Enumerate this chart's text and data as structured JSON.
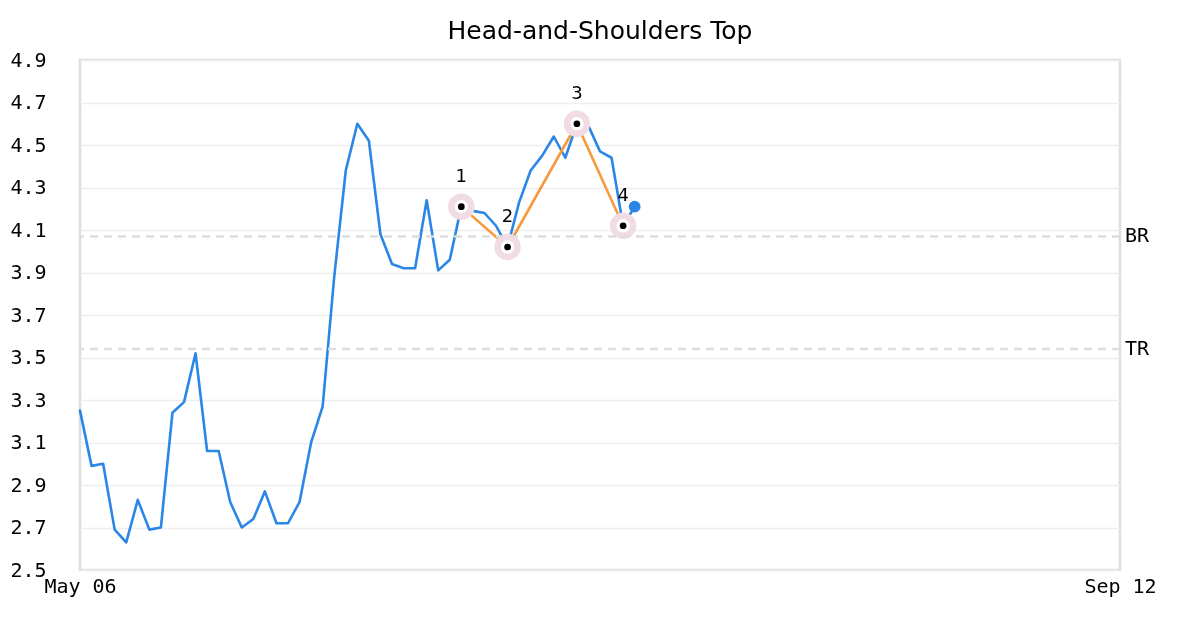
{
  "chart_data": {
    "type": "line",
    "title": "Head-and-Shoulders Top",
    "categories": [
      "May 06",
      null,
      null,
      null,
      null,
      null,
      null,
      null,
      null,
      null,
      null,
      null,
      null,
      null,
      null,
      null,
      null,
      null,
      null,
      null,
      null,
      null,
      null,
      null,
      null,
      null,
      null,
      null,
      null,
      null,
      null,
      null,
      null,
      null,
      null,
      null,
      null,
      null,
      null,
      null,
      null,
      null,
      null,
      null,
      null,
      null,
      null,
      null,
      null,
      null,
      null,
      null,
      null,
      null,
      null,
      null,
      null,
      null,
      null,
      null,
      null,
      null,
      null,
      null,
      null,
      null,
      null,
      null,
      null,
      null,
      null,
      null,
      null,
      null,
      null,
      null,
      null,
      null,
      null,
      null,
      null,
      null,
      null,
      null,
      null,
      null,
      null,
      null,
      null,
      null,
      "Sep 12"
    ],
    "series": [
      {
        "color": "#2b86e6",
        "values": [
          3.25,
          2.99,
          3.0,
          2.69,
          2.63,
          2.83,
          2.69,
          2.7,
          3.24,
          3.29,
          3.52,
          3.06,
          3.06,
          2.82,
          2.7,
          2.74,
          2.87,
          2.72,
          2.72,
          2.82,
          3.1,
          3.27,
          3.88,
          4.38,
          4.6,
          4.52,
          4.08,
          3.94,
          3.92,
          3.92,
          4.24,
          3.91,
          3.96,
          4.21,
          4.19,
          4.18,
          4.12,
          4.02,
          4.23,
          4.38,
          4.45,
          4.54,
          4.44,
          4.6,
          4.59,
          4.47,
          4.44,
          4.12,
          4.21,
          null,
          null,
          null,
          null,
          null,
          null,
          null,
          null,
          null,
          null,
          null,
          null,
          null,
          null,
          null,
          null,
          null,
          null,
          null,
          null,
          null,
          null,
          null,
          null,
          null,
          null,
          null,
          null,
          null,
          null,
          null,
          null,
          null,
          null,
          null,
          null,
          null,
          null,
          null,
          null,
          null,
          null
        ]
      },
      {
        "color": "#f7993d",
        "marker": "circle",
        "values": [
          null,
          null,
          null,
          null,
          null,
          null,
          null,
          null,
          null,
          null,
          null,
          null,
          null,
          null,
          null,
          null,
          null,
          null,
          null,
          null,
          null,
          null,
          null,
          null,
          null,
          null,
          null,
          null,
          null,
          null,
          null,
          null,
          null,
          4.21,
          null,
          null,
          null,
          4.02,
          null,
          null,
          null,
          null,
          null,
          4.6,
          null,
          null,
          null,
          4.12,
          null,
          null,
          null,
          null,
          null,
          null,
          null,
          null,
          null,
          null,
          null,
          null,
          null,
          null,
          null,
          null,
          null,
          null,
          null,
          null,
          null,
          null,
          null,
          null,
          null,
          null,
          null,
          null,
          null,
          null,
          null,
          null,
          null,
          null,
          null,
          null,
          null,
          null,
          null,
          null,
          null,
          null,
          null
        ]
      },
      {
        "type": "scatter",
        "color": "#2b86e6",
        "values": [
          null,
          null,
          null,
          null,
          null,
          null,
          null,
          null,
          null,
          null,
          null,
          null,
          null,
          null,
          null,
          null,
          null,
          null,
          null,
          null,
          null,
          null,
          null,
          null,
          null,
          null,
          null,
          null,
          null,
          null,
          null,
          null,
          null,
          null,
          null,
          null,
          null,
          null,
          null,
          null,
          null,
          null,
          null,
          null,
          null,
          null,
          null,
          null,
          4.21,
          null,
          null,
          null,
          null,
          null,
          null,
          null,
          null,
          null,
          null,
          null,
          null,
          null,
          null,
          null,
          null,
          null,
          null,
          null,
          null,
          null,
          null,
          null,
          null,
          null,
          null,
          null,
          null,
          null,
          null,
          null,
          null,
          null,
          null,
          null,
          null,
          null,
          null,
          null,
          null,
          null,
          null
        ]
      }
    ],
    "annotations": [
      "1",
      "2",
      "3",
      "4"
    ],
    "ylim": [
      2.5,
      4.9
    ],
    "yticks": [
      2.5,
      2.7,
      2.9,
      3.1,
      3.3,
      3.5,
      3.7,
      3.9,
      4.1,
      4.3,
      4.5,
      4.7,
      4.9
    ],
    "grid": "y",
    "ref_lines": [
      {
        "axis": "y",
        "value": 4.07,
        "label": "BR",
        "color": "#dddddd",
        "line_style": "dashed"
      },
      {
        "axis": "y",
        "value": 3.54,
        "label": "TR",
        "color": "#dddddd",
        "line_style": "dashed"
      }
    ]
  }
}
